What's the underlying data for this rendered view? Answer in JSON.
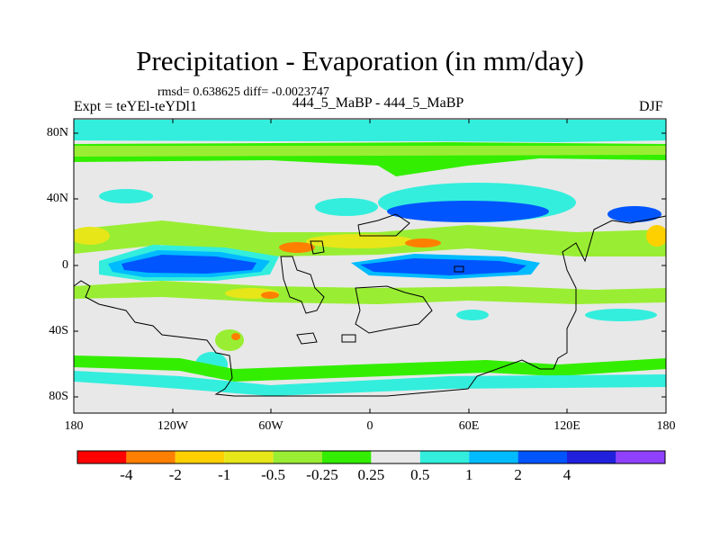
{
  "title": "Precipitation - Evaporation (in mm/day)",
  "stats": "rmsd= 0.638625 diff= -0.0023747",
  "experiment": "Expt = teYEl-teYDl1",
  "case_label": "444_5_MaBP - 444_5_MaBP",
  "season": "DJF",
  "lat_labels": [
    "80N",
    "40N",
    "0",
    "40S",
    "80S"
  ],
  "lon_labels": [
    "180",
    "120W",
    "60W",
    "0",
    "60E",
    "120E",
    "180"
  ],
  "colorbar": {
    "colors": [
      "#ff0000",
      "#ff8000",
      "#ffd000",
      "#e6e619",
      "#99ee33",
      "#33ee00",
      "#e8e8e8",
      "#33eedd",
      "#00bbff",
      "#0055ff",
      "#2020dd",
      "#9040ff"
    ],
    "labels": [
      "-4",
      "-2",
      "-1",
      "-0.5",
      "-0.25",
      "0.25",
      "0.5",
      "1",
      "2",
      "4"
    ]
  }
}
